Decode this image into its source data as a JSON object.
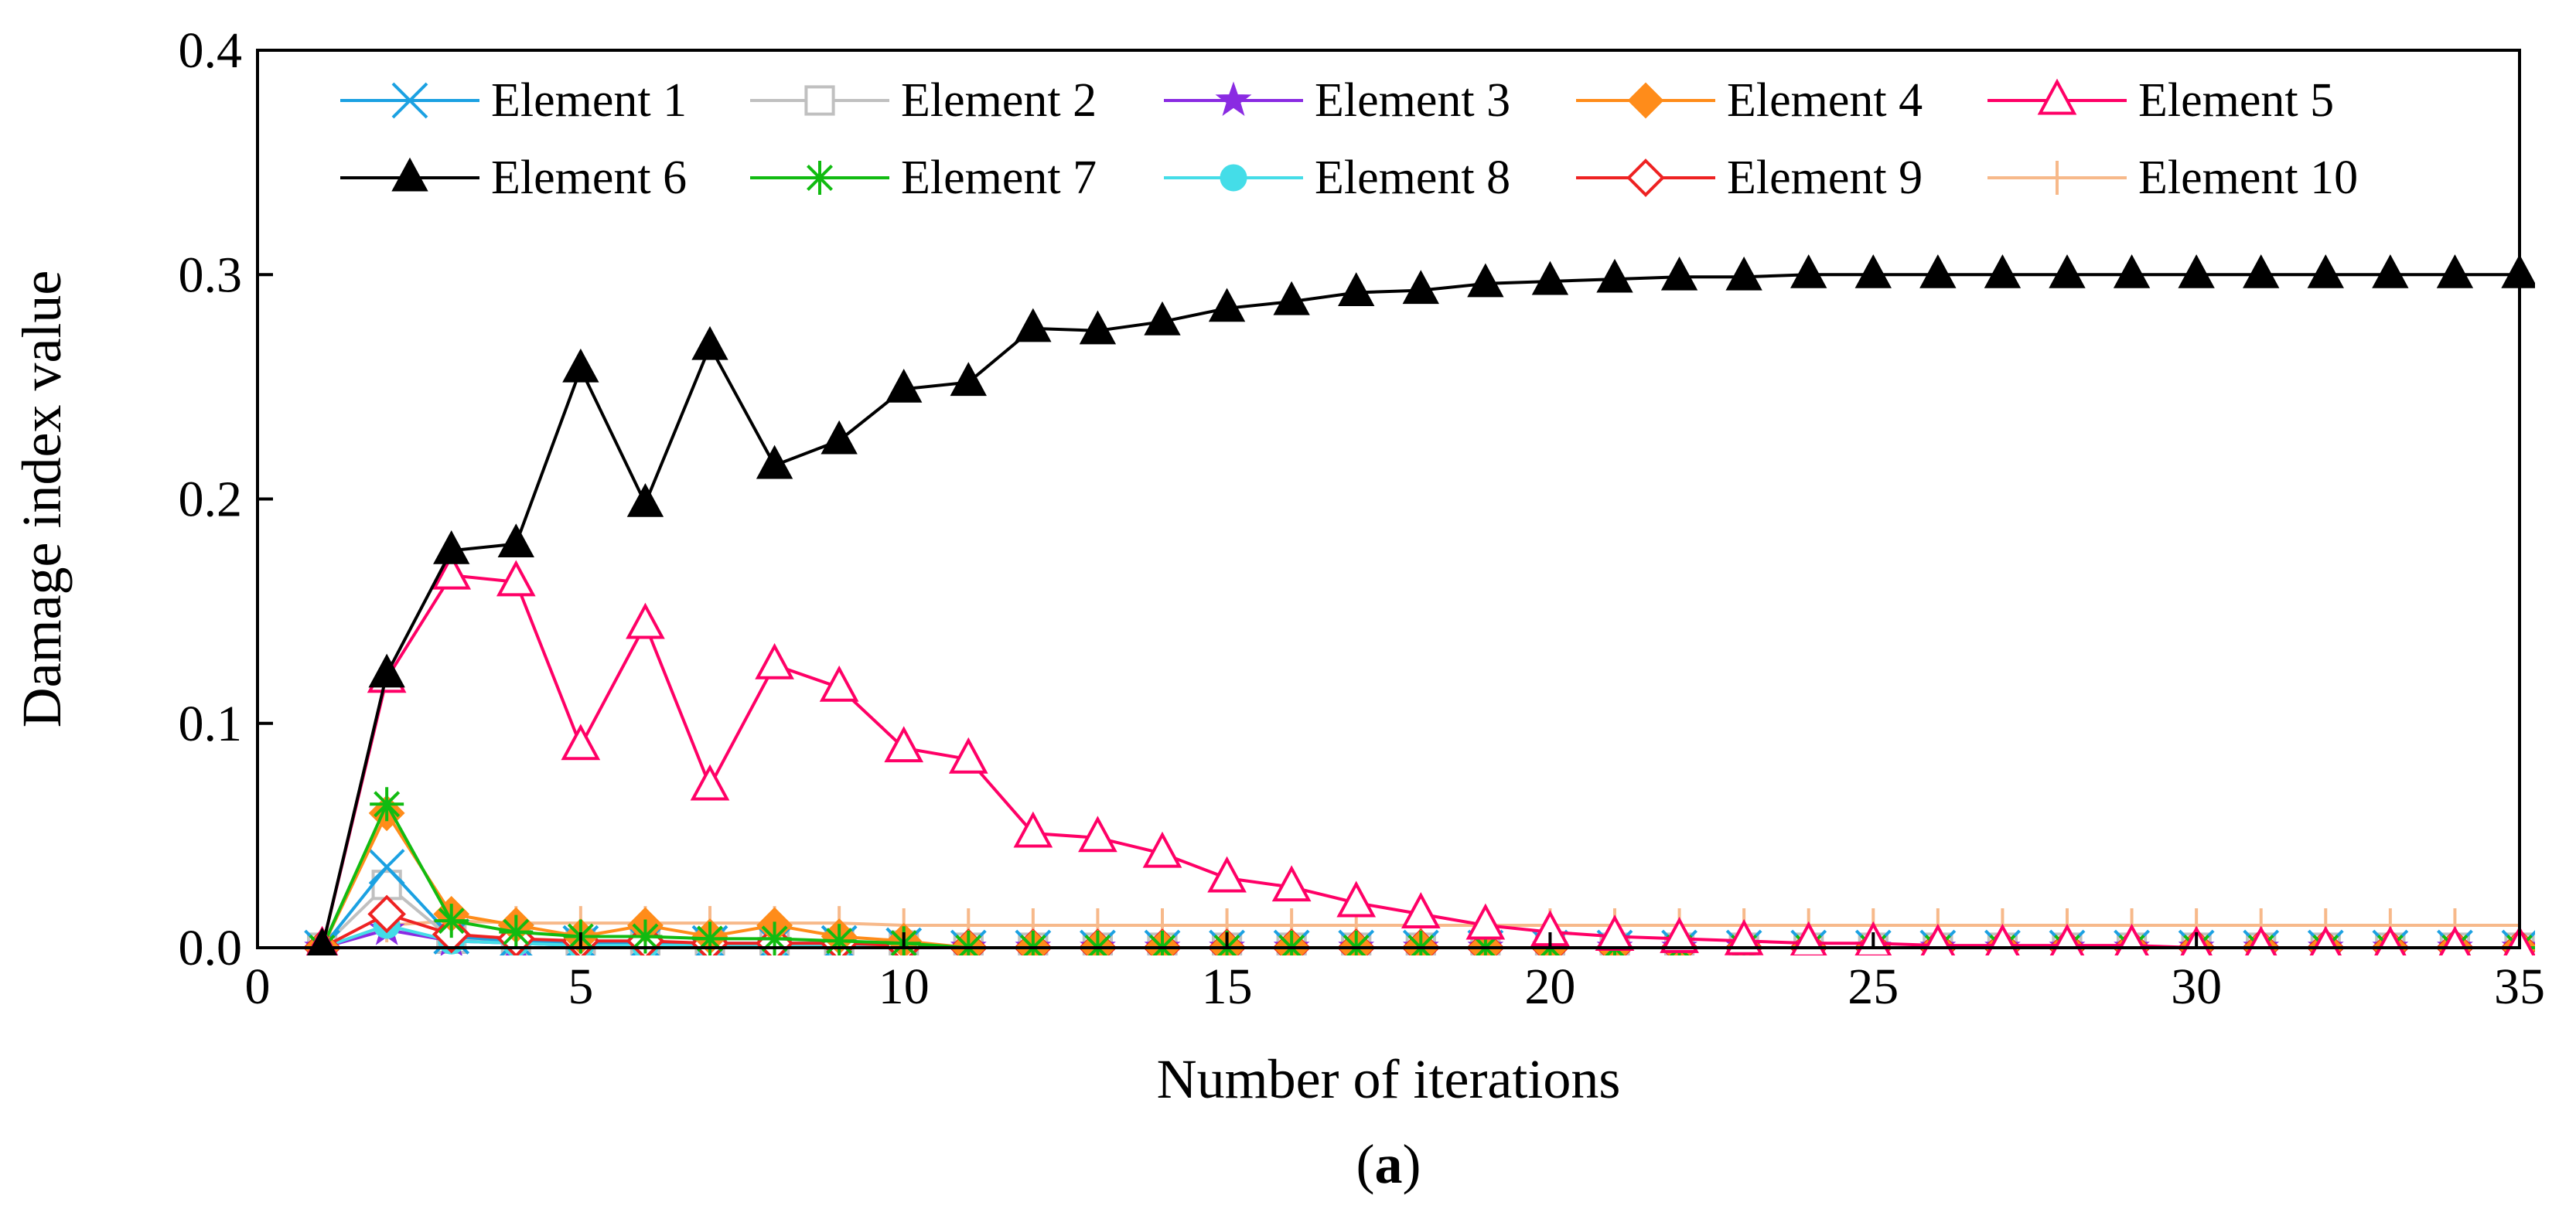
{
  "chart_data": {
    "type": "line",
    "title": "",
    "caption": {
      "open": "(",
      "label": "a",
      "close": ")"
    },
    "xlabel": "Number of iterations",
    "ylabel": "Damage index value",
    "xlim": [
      0,
      35
    ],
    "ylim": [
      0,
      0.4
    ],
    "xticks": [
      0,
      5,
      10,
      15,
      20,
      25,
      30,
      35
    ],
    "xtick_labels": [
      "0",
      "5",
      "10",
      "15",
      "20",
      "25",
      "30",
      "35"
    ],
    "yticks": [
      0,
      0.1,
      0.2,
      0.3,
      0.4
    ],
    "ytick_labels": [
      "0.0",
      "0.1",
      "0.2",
      "0.3",
      "0.4"
    ],
    "grid": false,
    "legend_position": "top-right",
    "x": [
      1,
      2,
      3,
      4,
      5,
      6,
      7,
      8,
      9,
      10,
      11,
      12,
      13,
      14,
      15,
      16,
      17,
      18,
      19,
      20,
      21,
      22,
      23,
      24,
      25,
      26,
      27,
      28,
      29,
      30,
      31,
      32,
      33,
      34,
      35
    ],
    "series": [
      {
        "name": "Element 1",
        "color": "#1ba1e2",
        "marker": "x",
        "values": [
          0,
          0.036,
          0.005,
          0.003,
          0.002,
          0.002,
          0.002,
          0.002,
          0.002,
          0.001,
          0,
          0,
          0,
          0,
          0,
          0,
          0,
          0,
          0,
          0,
          0,
          0,
          0,
          0,
          0,
          0,
          0,
          0,
          0,
          0,
          0,
          0,
          0,
          0,
          0
        ]
      },
      {
        "name": "Element 2",
        "color": "#c0c0c0",
        "marker": "square-open",
        "values": [
          0,
          0.028,
          0.004,
          0.003,
          0.002,
          0.002,
          0.002,
          0.002,
          0.002,
          0.001,
          0,
          0,
          0,
          0,
          0,
          0,
          0,
          0,
          0,
          0,
          0,
          0,
          0,
          0,
          0,
          0,
          0,
          0,
          0,
          0,
          0,
          0,
          0,
          0,
          0
        ]
      },
      {
        "name": "Element 3",
        "color": "#8a2be2",
        "marker": "star",
        "values": [
          0,
          0.008,
          0.003,
          0.002,
          0.001,
          0.001,
          0.001,
          0.001,
          0.001,
          0,
          0,
          0,
          0,
          0,
          0,
          0,
          0,
          0,
          0,
          0,
          0,
          0,
          0,
          0,
          0,
          0,
          0,
          0,
          0,
          0,
          0,
          0,
          0,
          0,
          0
        ]
      },
      {
        "name": "Element 4",
        "color": "#ff8c1a",
        "marker": "diamond",
        "values": [
          0,
          0.06,
          0.015,
          0.01,
          0.005,
          0.01,
          0.005,
          0.01,
          0.005,
          0.003,
          0,
          0,
          0,
          0,
          0,
          0,
          0,
          0,
          0,
          0,
          0,
          0,
          0,
          0,
          0,
          0,
          0,
          0,
          0,
          0,
          0,
          0,
          0,
          0,
          0
        ]
      },
      {
        "name": "Element 5",
        "color": "#ff0066",
        "marker": "triangle-open",
        "values": [
          0,
          0.12,
          0.166,
          0.163,
          0.09,
          0.144,
          0.072,
          0.126,
          0.116,
          0.089,
          0.084,
          0.051,
          0.049,
          0.042,
          0.031,
          0.027,
          0.02,
          0.015,
          0.01,
          0.007,
          0.005,
          0.004,
          0.003,
          0.002,
          0.002,
          0.001,
          0.001,
          0.001,
          0.001,
          0,
          0,
          0,
          0,
          0,
          0
        ]
      },
      {
        "name": "Element 6",
        "color": "#000000",
        "marker": "triangle",
        "values": [
          0,
          0.122,
          0.177,
          0.18,
          0.258,
          0.198,
          0.268,
          0.215,
          0.226,
          0.249,
          0.252,
          0.276,
          0.275,
          0.279,
          0.285,
          0.288,
          0.292,
          0.293,
          0.296,
          0.297,
          0.298,
          0.299,
          0.299,
          0.3,
          0.3,
          0.3,
          0.3,
          0.3,
          0.3,
          0.3,
          0.3,
          0.3,
          0.3,
          0.3,
          0.3
        ]
      },
      {
        "name": "Element 7",
        "color": "#11bb11",
        "marker": "asterisk",
        "values": [
          0,
          0.064,
          0.012,
          0.007,
          0.005,
          0.005,
          0.004,
          0.004,
          0.003,
          0.002,
          0,
          0,
          0,
          0,
          0,
          0,
          0,
          0,
          0,
          0,
          0,
          0,
          0,
          0,
          0,
          0,
          0,
          0,
          0,
          0,
          0,
          0,
          0,
          0,
          0
        ]
      },
      {
        "name": "Element 8",
        "color": "#44dde8",
        "marker": "circle",
        "values": [
          0,
          0.01,
          0.003,
          0.002,
          0.001,
          0.001,
          0.001,
          0.001,
          0.001,
          0,
          0,
          0,
          0,
          0,
          0,
          0,
          0,
          0,
          0,
          0,
          0,
          0,
          0,
          0,
          0,
          0,
          0,
          0,
          0,
          0,
          0,
          0,
          0,
          0,
          0
        ]
      },
      {
        "name": "Element 9",
        "color": "#ee2222",
        "marker": "diamond-open",
        "values": [
          0,
          0.015,
          0.006,
          0.004,
          0.003,
          0.003,
          0.002,
          0.002,
          0.002,
          0.001,
          0,
          0,
          0,
          0,
          0,
          0,
          0,
          0,
          0,
          0,
          0,
          0,
          0,
          0,
          0,
          0,
          0,
          0,
          0,
          0,
          0,
          0,
          0,
          0,
          0
        ]
      },
      {
        "name": "Element 10",
        "color": "#f7b98a",
        "marker": "plus-vertical",
        "values": [
          0,
          0.01,
          0.012,
          0.011,
          0.011,
          0.011,
          0.011,
          0.011,
          0.011,
          0.01,
          0.01,
          0.01,
          0.01,
          0.01,
          0.01,
          0.01,
          0.01,
          0.01,
          0.01,
          0.01,
          0.01,
          0.01,
          0.01,
          0.01,
          0.01,
          0.01,
          0.01,
          0.01,
          0.01,
          0.01,
          0.01,
          0.01,
          0.01,
          0.01,
          0.01
        ]
      }
    ]
  }
}
